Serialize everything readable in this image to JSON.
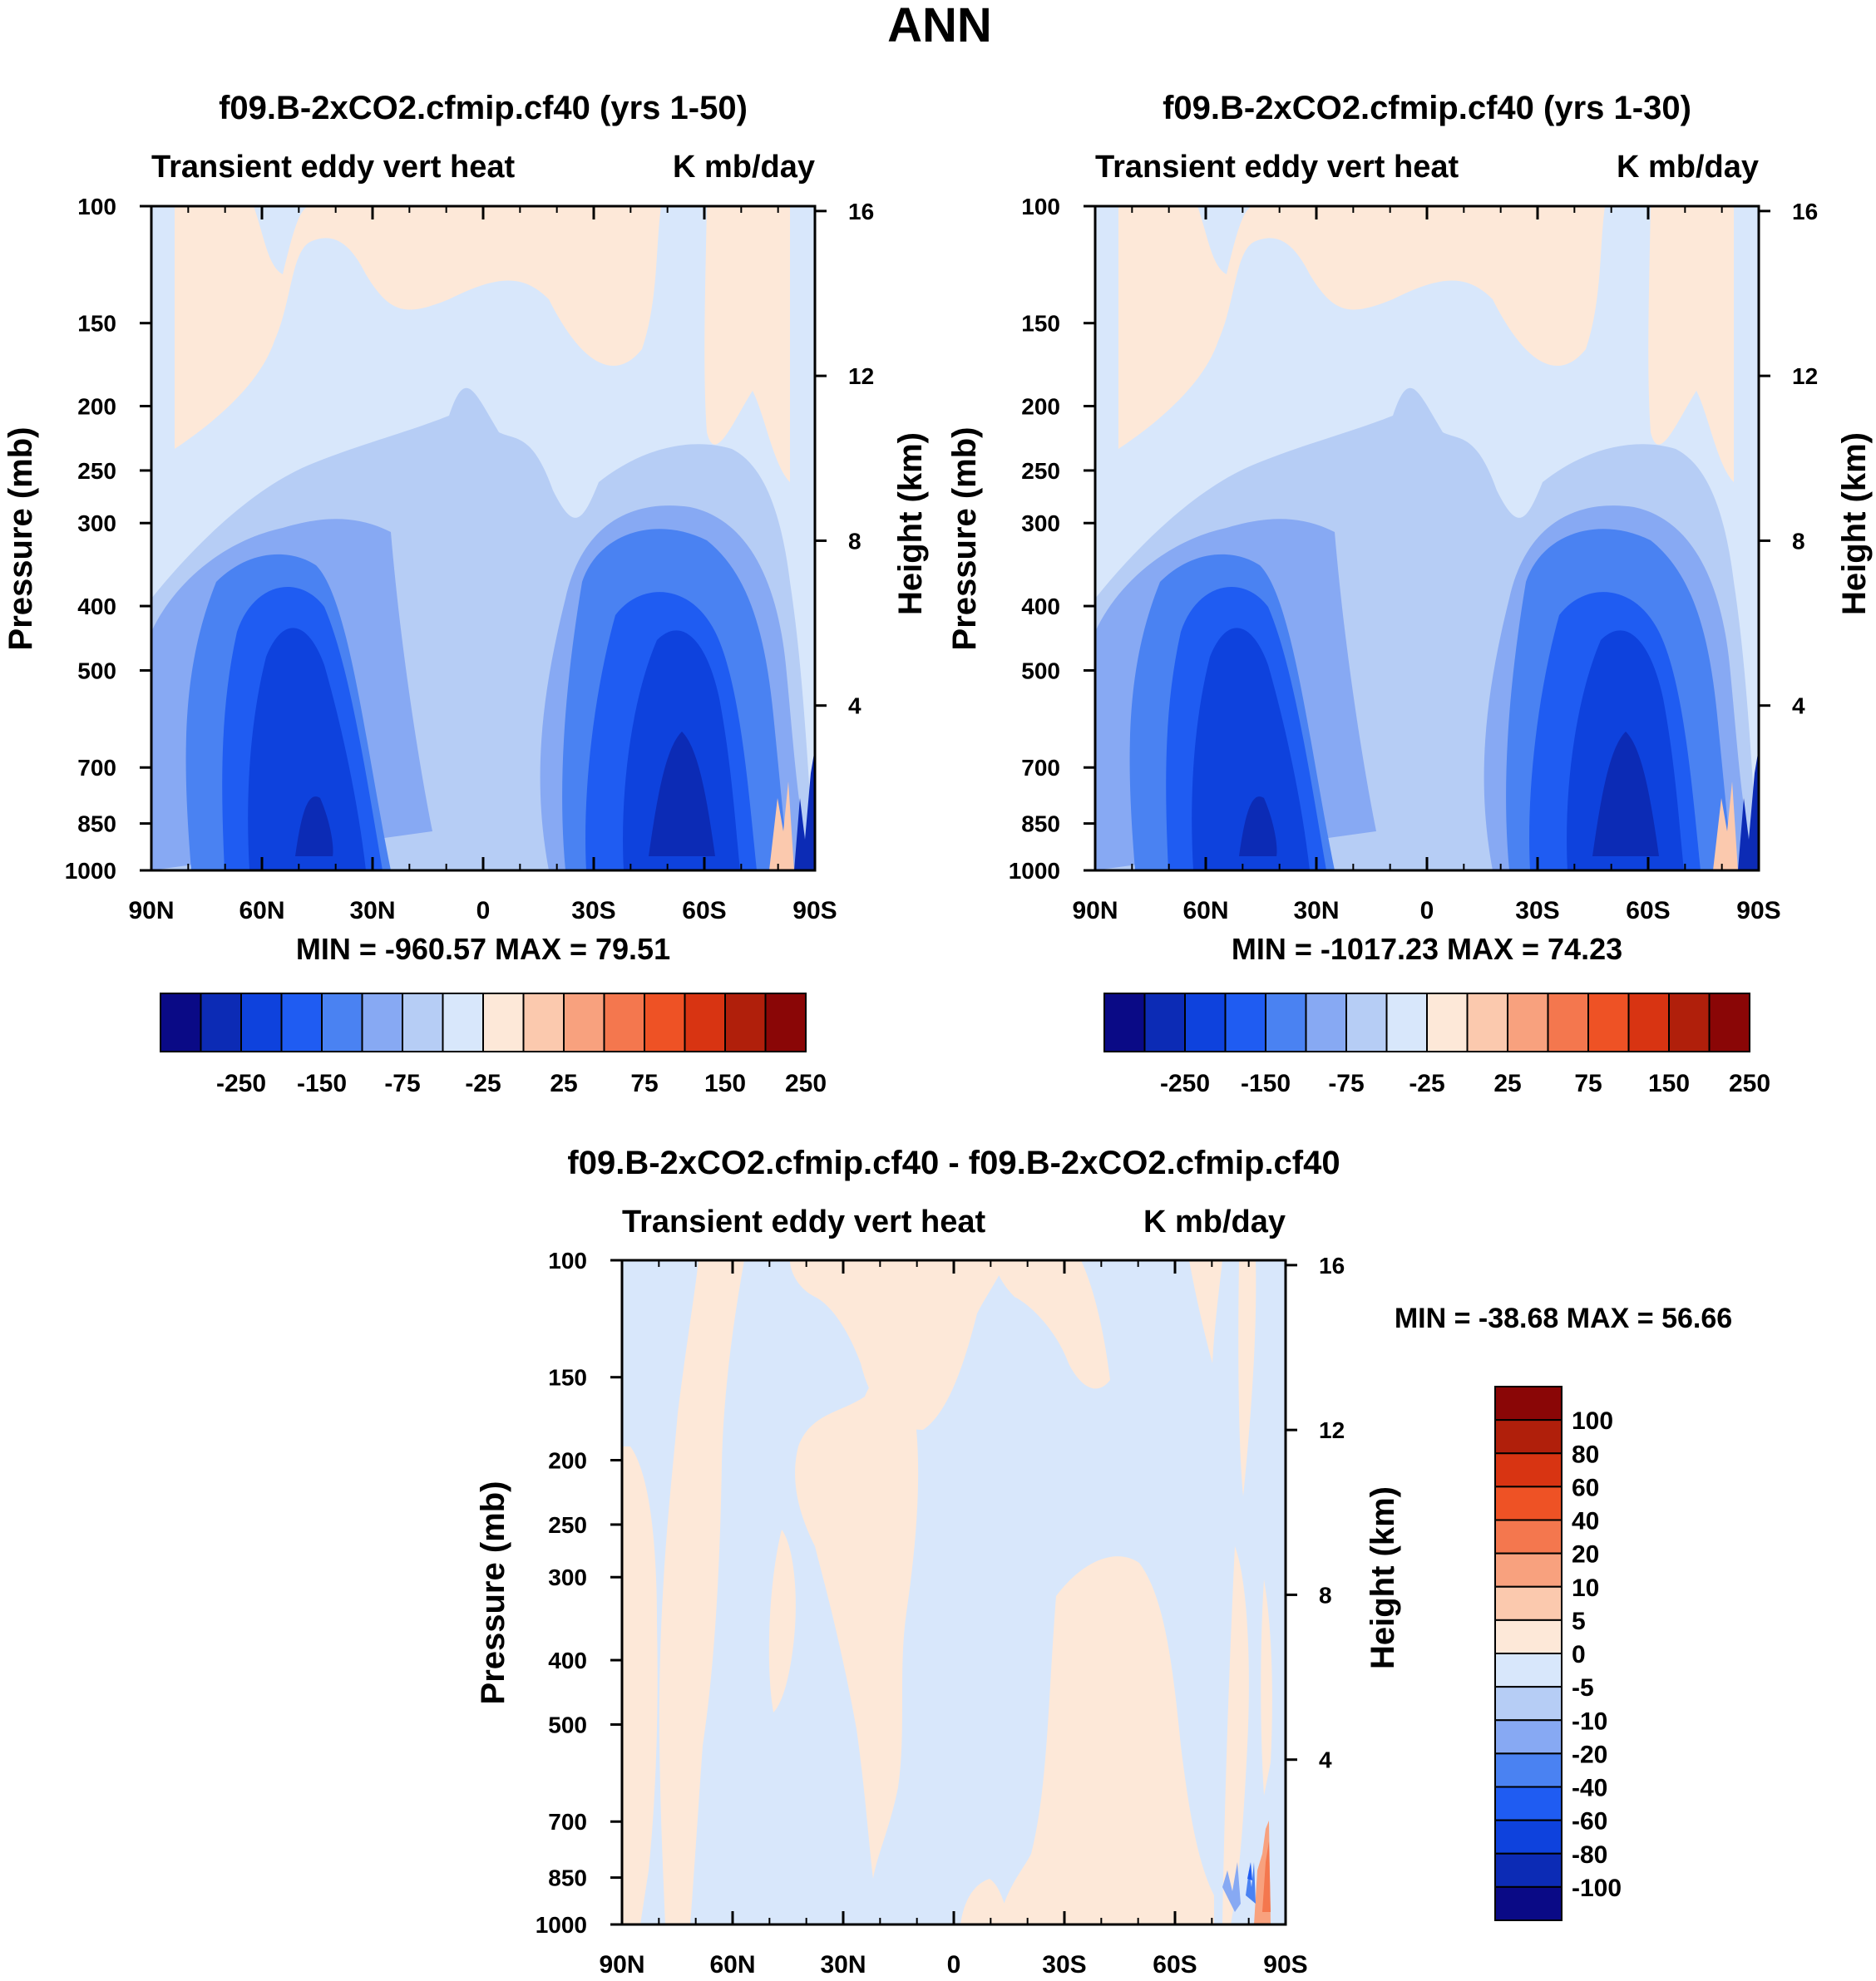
{
  "figure": {
    "title": "ANN"
  },
  "colors": {
    "diverging": [
      "#0a0a86",
      "#0c2bb5",
      "#0e42dd",
      "#1f5cf2",
      "#4a82f2",
      "#87a9f3",
      "#b6cdf5",
      "#d8e7fb",
      "#fde8d8",
      "#fbc9ae",
      "#f8a17e",
      "#f4774e",
      "#ee5225",
      "#d83412",
      "#b01f0b",
      "#8a0606"
    ],
    "outline": "#000000",
    "background": "#ffffff"
  },
  "chart_data": [
    {
      "id": "panel1",
      "type": "heatmap",
      "title": "f09.B-2xCO2.cfmip.cf40 (yrs 1-50)",
      "left_label": "Transient eddy vert heat",
      "right_label": "K mb/day",
      "ylabel": "Pressure (mb)",
      "y2label": "Height (km)",
      "xticks": [
        "90N",
        "60N",
        "30N",
        "0",
        "30S",
        "60S",
        "90S"
      ],
      "yticks": [
        100,
        150,
        200,
        250,
        300,
        400,
        500,
        700,
        850,
        1000
      ],
      "y2ticks": [
        16,
        12,
        8,
        4
      ],
      "xlim": [
        90,
        -90
      ],
      "ylim": [
        1000,
        100
      ],
      "min_max": "MIN = -960.57  MAX =  79.51",
      "min": -960.57,
      "max": 79.51,
      "colorbar": {
        "orientation": "horizontal",
        "levels": [
          -500,
          -250,
          -200,
          -150,
          -100,
          -75,
          -50,
          -25,
          0,
          25,
          50,
          75,
          100,
          150,
          200,
          250,
          500
        ],
        "tick_labels": [
          "-250",
          "-150",
          "-75",
          "-25",
          "25",
          "75",
          "150",
          "250"
        ]
      }
    },
    {
      "id": "panel2",
      "type": "heatmap",
      "title": "f09.B-2xCO2.cfmip.cf40 (yrs 1-30)",
      "left_label": "Transient eddy vert heat",
      "right_label": "K mb/day",
      "ylabel": "Pressure (mb)",
      "y2label": "Height (km)",
      "xticks": [
        "90N",
        "60N",
        "30N",
        "0",
        "30S",
        "60S",
        "90S"
      ],
      "yticks": [
        100,
        150,
        200,
        250,
        300,
        400,
        500,
        700,
        850,
        1000
      ],
      "y2ticks": [
        16,
        12,
        8,
        4
      ],
      "xlim": [
        90,
        -90
      ],
      "ylim": [
        1000,
        100
      ],
      "min_max": "MIN = -1017.23  MAX =  74.23",
      "min": -1017.23,
      "max": 74.23,
      "colorbar": {
        "orientation": "horizontal",
        "levels": [
          -500,
          -250,
          -200,
          -150,
          -100,
          -75,
          -50,
          -25,
          0,
          25,
          50,
          75,
          100,
          150,
          200,
          250,
          500
        ],
        "tick_labels": [
          "-250",
          "-150",
          "-75",
          "-25",
          "25",
          "75",
          "150",
          "250"
        ]
      }
    },
    {
      "id": "panel3",
      "type": "heatmap",
      "title": "f09.B-2xCO2.cfmip.cf40 - f09.B-2xCO2.cfmip.cf40",
      "left_label": "Transient eddy vert heat",
      "right_label": "K mb/day",
      "ylabel": "Pressure (mb)",
      "y2label": "Height (km)",
      "xticks": [
        "90N",
        "60N",
        "30N",
        "0",
        "30S",
        "60S",
        "90S"
      ],
      "yticks": [
        100,
        150,
        200,
        250,
        300,
        400,
        500,
        700,
        850,
        1000
      ],
      "y2ticks": [
        16,
        12,
        8,
        4
      ],
      "xlim": [
        90,
        -90
      ],
      "ylim": [
        1000,
        100
      ],
      "min_max": "MIN = -38.68  MAX =  56.66",
      "min": -38.68,
      "max": 56.66,
      "colorbar": {
        "orientation": "vertical",
        "levels": [
          -200,
          -100,
          -80,
          -60,
          -40,
          -20,
          -10,
          -5,
          0,
          5,
          10,
          20,
          40,
          60,
          80,
          100,
          200
        ],
        "tick_labels": [
          "100",
          "80",
          "60",
          "40",
          "20",
          "10",
          "5",
          "0",
          "-5",
          "-10",
          "-20",
          "-40",
          "-60",
          "-80",
          "-100"
        ]
      }
    }
  ]
}
